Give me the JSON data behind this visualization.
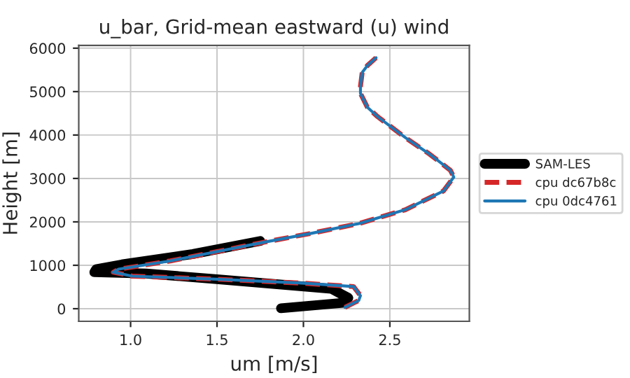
{
  "chart_data": {
    "type": "line",
    "title": "u_bar, Grid-mean eastward (u) wind",
    "xlabel": "um [m/s]",
    "ylabel": "Height [m]",
    "xlim": [
      0.7,
      2.96
    ],
    "ylim": [
      -290,
      6065
    ],
    "xticks": [
      {
        "value": 1,
        "label": "1.0"
      },
      1.5,
      {
        "value": 2,
        "label": "2.0"
      },
      2.5
    ],
    "yticks": [
      0,
      1000,
      2000,
      3000,
      4000,
      5000,
      6000
    ],
    "grid": true,
    "legend": "right",
    "series": [
      {
        "name": "SAM-LES",
        "color": "#000000",
        "line_style": "solid",
        "x": [
          1.87,
          2.24,
          2.26,
          2.16,
          1.5,
          1.09,
          0.79,
          0.8,
          0.95,
          1.36,
          1.75
        ],
        "values": [
          10,
          140,
          250,
          460,
          680,
          810,
          840,
          910,
          1020,
          1260,
          1560
        ]
      },
      {
        "name": "cpu dc67b8c",
        "color": "#d62728",
        "line_style": "dashed",
        "x": [
          2.24,
          2.32,
          2.33,
          2.29,
          1.99,
          1.5,
          1.01,
          0.9,
          0.93,
          1.23,
          1.77,
          2.05,
          2.32,
          2.59,
          2.81,
          2.87,
          2.85,
          2.73,
          2.59,
          2.43,
          2.37,
          2.33,
          2.33,
          2.34,
          2.37,
          2.42
        ],
        "values": [
          30,
          190,
          300,
          510,
          590,
          680,
          750,
          840,
          910,
          1100,
          1530,
          1740,
          1960,
          2280,
          2710,
          3030,
          3190,
          3560,
          3940,
          4420,
          4640,
          4960,
          5120,
          5440,
          5600,
          5780
        ]
      },
      {
        "name": "cpu 0dc4761",
        "color": "#1f77b4",
        "line_style": "solid",
        "x": [
          2.24,
          2.32,
          2.33,
          2.29,
          1.99,
          1.5,
          1.01,
          0.9,
          0.93,
          1.23,
          1.77,
          2.05,
          2.32,
          2.59,
          2.81,
          2.87,
          2.85,
          2.73,
          2.59,
          2.43,
          2.37,
          2.33,
          2.33,
          2.34,
          2.37,
          2.42
        ],
        "values": [
          30,
          190,
          300,
          510,
          590,
          680,
          750,
          840,
          910,
          1100,
          1530,
          1740,
          1960,
          2280,
          2710,
          3030,
          3190,
          3560,
          3940,
          4420,
          4640,
          4960,
          5120,
          5440,
          5600,
          5780
        ]
      }
    ]
  }
}
